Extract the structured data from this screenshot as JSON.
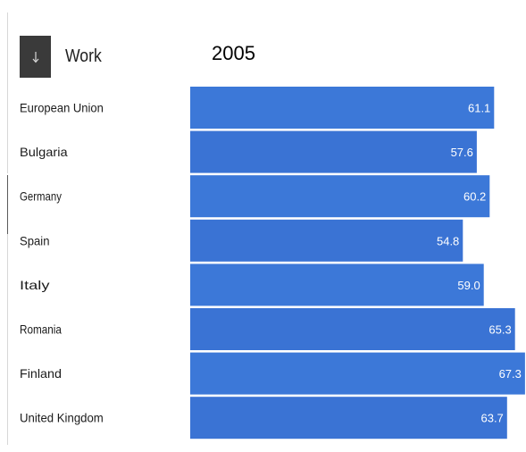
{
  "header": {
    "metric_label": "Work",
    "year_label": "2005"
  },
  "icons": {
    "sort": "arrow-down-icon"
  },
  "colors": {
    "bar": "#3c78d8",
    "bar_alt": "#3a73d4",
    "sort_button_bg": "#3a3a3a"
  },
  "chart_data": {
    "type": "bar",
    "orientation": "horizontal",
    "categories": [
      "European Union",
      "Bulgaria",
      "Germany",
      "Spain",
      "Italy",
      "Romania",
      "Finland",
      "United Kingdom"
    ],
    "values": [
      61.1,
      57.6,
      60.2,
      54.8,
      59.0,
      65.3,
      67.3,
      63.7
    ],
    "value_labels": [
      "61.1",
      "57.6",
      "60.2",
      "54.8",
      "59.0",
      "65.3",
      "67.3",
      "63.7"
    ],
    "title": "2005",
    "xlim": [
      0,
      67.5
    ],
    "grid": false,
    "data_labels": "inside-end"
  }
}
